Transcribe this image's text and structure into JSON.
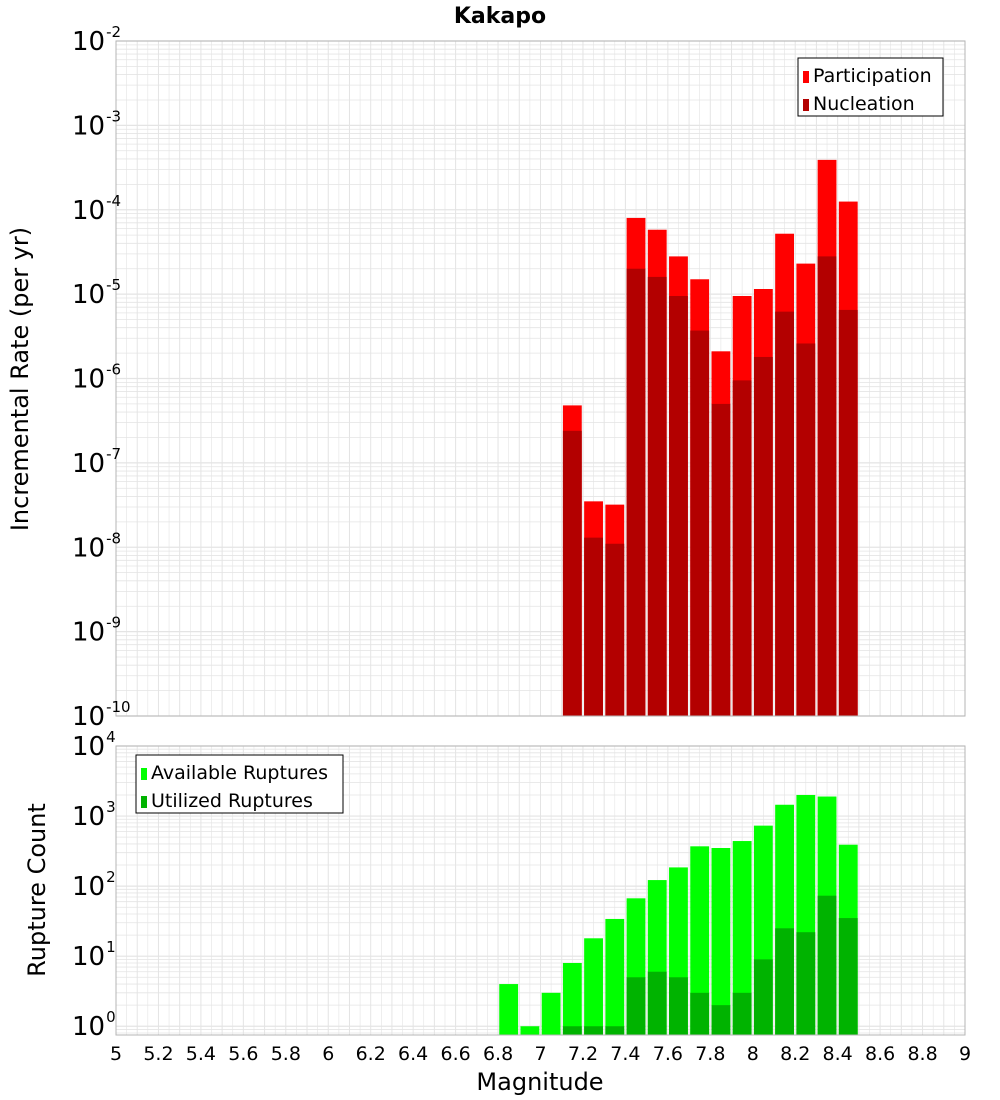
{
  "title": "Kakapo",
  "xlabel": "Magnitude",
  "x_ticks": [
    "5",
    "5.2",
    "5.4",
    "5.6",
    "5.8",
    "6",
    "6.2",
    "6.4",
    "6.6",
    "6.8",
    "7",
    "7.2",
    "7.4",
    "7.6",
    "7.8",
    "8",
    "8.2",
    "8.4",
    "8.6",
    "8.8",
    "9"
  ],
  "colors": {
    "participation": "#ff0000",
    "nucleation": "#b30000",
    "available": "#00ff00",
    "utilized": "#00b300",
    "grid": "#e4e4e4",
    "frame": "#b4b4b4"
  },
  "chart_data": [
    {
      "type": "bar",
      "title": "Kakapo",
      "ylabel": "Incremental Rate (per yr)",
      "xlabel": "",
      "y_scale": "log",
      "ylim": [
        1e-10,
        0.01
      ],
      "xlim": [
        5,
        9
      ],
      "y_tick_exponents": [
        "-2",
        "-3",
        "-4",
        "-5",
        "-6",
        "-7",
        "-8",
        "-9",
        "-10"
      ],
      "legend_position": "top-right",
      "x": [
        7.15,
        7.25,
        7.35,
        7.45,
        7.55,
        7.65,
        7.75,
        7.85,
        7.95,
        8.05,
        8.15,
        8.25,
        8.35,
        8.45
      ],
      "series": [
        {
          "name": "Participation",
          "color": "#ff0000",
          "values": [
            4.8e-07,
            3.5e-08,
            3.2e-08,
            8e-05,
            5.8e-05,
            2.8e-05,
            1.5e-05,
            2.1e-06,
            9.5e-06,
            1.15e-05,
            5.2e-05,
            2.3e-05,
            0.00039,
            0.000125
          ]
        },
        {
          "name": "Nucleation",
          "color": "#b30000",
          "values": [
            2.4e-07,
            1.3e-08,
            1.1e-08,
            2e-05,
            1.6e-05,
            9.5e-06,
            3.7e-06,
            5e-07,
            9.5e-07,
            1.8e-06,
            6.2e-06,
            2.6e-06,
            2.8e-05,
            6.5e-06
          ]
        }
      ]
    },
    {
      "type": "bar",
      "ylabel": "Rupture Count",
      "xlabel": "Magnitude",
      "y_scale": "log",
      "ylim": [
        0.75,
        10000
      ],
      "xlim": [
        5,
        9
      ],
      "y_tick_exponents": [
        "4",
        "3",
        "2",
        "1",
        "0"
      ],
      "legend_position": "top-left",
      "x": [
        6.85,
        6.95,
        7.05,
        7.15,
        7.25,
        7.35,
        7.45,
        7.55,
        7.65,
        7.75,
        7.85,
        7.95,
        8.05,
        8.15,
        8.25,
        8.35,
        8.45
      ],
      "series": [
        {
          "name": "Available Ruptures",
          "color": "#00ff00",
          "values": [
            4,
            1,
            3,
            8,
            18,
            34,
            67,
            122,
            185,
            370,
            350,
            440,
            730,
            1450,
            2000,
            1900,
            390
          ]
        },
        {
          "name": "Utilized Ruptures",
          "color": "#00b300",
          "values": [
            0,
            0,
            0,
            1,
            1,
            1,
            5,
            6,
            5,
            3,
            2,
            3,
            9,
            25,
            22,
            73,
            35
          ]
        }
      ]
    }
  ]
}
